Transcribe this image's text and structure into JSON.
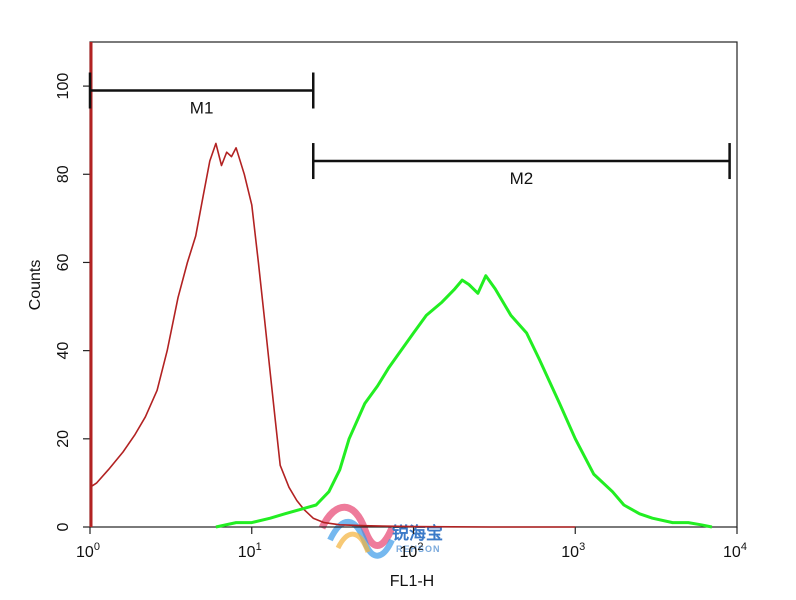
{
  "chart_data": {
    "type": "line",
    "xlabel": "FL1-H",
    "ylabel": "Counts",
    "x_scale": "log",
    "xlim": [
      1,
      10000
    ],
    "ylim": [
      0,
      110
    ],
    "x_ticks": [
      {
        "value": 1,
        "base": "10",
        "exp": "0"
      },
      {
        "value": 10,
        "base": "10",
        "exp": "1"
      },
      {
        "value": 100,
        "base": "10",
        "exp": "2"
      },
      {
        "value": 1000,
        "base": "10",
        "exp": "3"
      },
      {
        "value": 10000,
        "base": "10",
        "exp": "4"
      }
    ],
    "y_ticks": [
      {
        "value": 0,
        "label": "0"
      },
      {
        "value": 20,
        "label": "20"
      },
      {
        "value": 40,
        "label": "40"
      },
      {
        "value": 60,
        "label": "60"
      },
      {
        "value": 80,
        "label": "80"
      },
      {
        "value": 100,
        "label": "100"
      }
    ],
    "series": [
      {
        "color": "#b22222",
        "x": [
          1.0,
          1.1,
          1.3,
          1.6,
          1.9,
          2.2,
          2.6,
          3.0,
          3.5,
          4.0,
          4.5,
          5.0,
          5.5,
          6.0,
          6.5,
          7.0,
          7.5,
          8.0,
          9.0,
          10.0,
          11.0,
          12.0,
          13.0,
          14.0,
          15.0,
          17.0,
          19.0,
          21.0,
          24.0,
          28.0,
          35.0,
          50.0,
          100.0,
          300.0,
          1000.0
        ],
        "y": [
          9,
          10,
          13,
          17,
          21,
          25,
          31,
          40,
          52,
          60,
          66,
          75,
          83,
          87,
          82,
          85,
          84,
          86,
          80,
          73,
          60,
          47,
          35,
          24,
          14,
          9,
          6,
          4,
          2,
          1,
          0.5,
          0.3,
          0.1,
          0,
          0
        ]
      },
      {
        "color": "#22ee22",
        "x": [
          6.0,
          8.0,
          10.0,
          13.0,
          16.0,
          20.0,
          25.0,
          30.0,
          35.0,
          40.0,
          50.0,
          60.0,
          70.0,
          80.0,
          100.0,
          120.0,
          150.0,
          180.0,
          200.0,
          220.0,
          250.0,
          280.0,
          320.0,
          400.0,
          500.0,
          600.0,
          800.0,
          1000.0,
          1300.0,
          1700.0,
          2000.0,
          2500.0,
          3000.0,
          4000.0,
          5000.0,
          6000.0,
          7000.0
        ],
        "y": [
          0,
          1,
          1,
          2,
          3,
          4,
          5,
          8,
          13,
          20,
          28,
          32,
          36,
          39,
          44,
          48,
          51,
          54,
          56,
          55,
          53,
          57,
          54,
          48,
          44,
          38,
          28,
          20,
          12,
          8,
          5,
          3,
          2,
          1,
          1,
          0.5,
          0
        ]
      }
    ],
    "markers": [
      {
        "label": "M1",
        "x_start": 1,
        "x_end": 24,
        "y": 99
      },
      {
        "label": "M2",
        "x_start": 24,
        "x_end": 9000,
        "y": 83
      }
    ],
    "watermark": {
      "text": "锐海宝",
      "sub": "REHSON"
    }
  }
}
